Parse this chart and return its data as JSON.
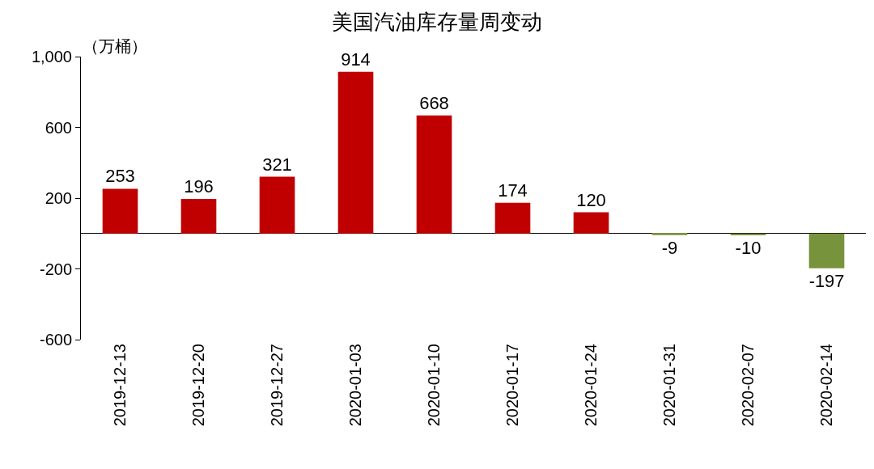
{
  "chart_data": {
    "type": "bar",
    "title": "美国汽油库存量周变动",
    "ylabel": "（万桶）",
    "categories": [
      "2019-12-13",
      "2019-12-20",
      "2019-12-27",
      "2020-01-03",
      "2020-01-10",
      "2020-01-17",
      "2020-01-24",
      "2020-01-31",
      "2020-02-07",
      "2020-02-14"
    ],
    "values": [
      253,
      196,
      321,
      914,
      668,
      174,
      120,
      -9,
      -10,
      -197
    ],
    "colors": [
      "#c00000",
      "#c00000",
      "#c00000",
      "#c00000",
      "#c00000",
      "#c00000",
      "#c00000",
      "#77933c",
      "#77933c",
      "#77933c"
    ],
    "ylim": [
      -600,
      1000
    ],
    "yticks": [
      -600,
      -200,
      200,
      600,
      {
        "value": 1000,
        "label": "1,000"
      }
    ],
    "data_labels": true
  }
}
